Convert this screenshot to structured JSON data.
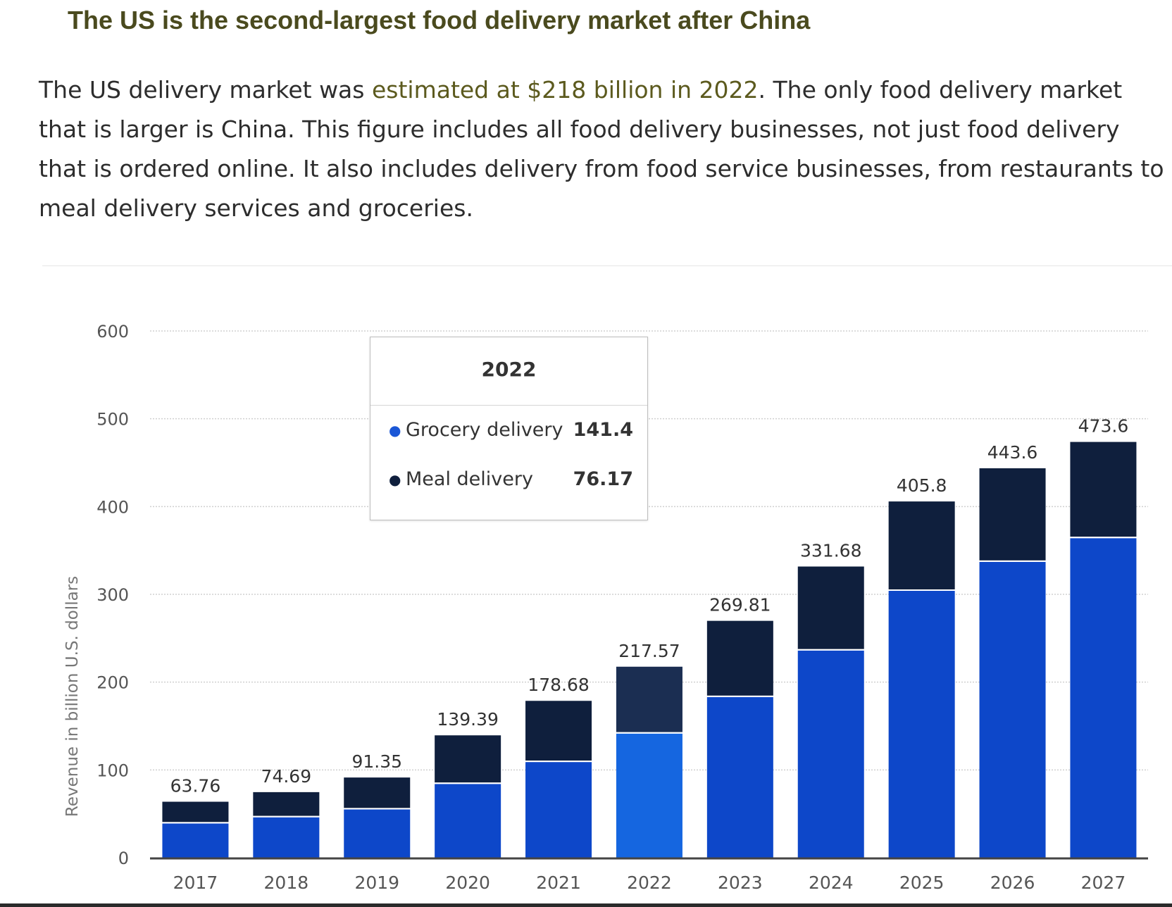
{
  "article": {
    "title": "The US is the second-largest food delivery market after China",
    "intro_before": "The US delivery market was ",
    "intro_link": "estimated at $218 billion in 2022",
    "intro_after": ". The only food delivery market that is larger is China. This figure includes all food delivery businesses, not just food delivery that is ordered online. It also includes delivery from food service businesses, from restaurants to meal delivery services and groceries."
  },
  "colors": {
    "grocery": "#0d47c9",
    "grocery_highlight": "#1566e0",
    "meal": "#0f1f3d",
    "meal_highlight": "#1b2e52",
    "grid": "#d0d0d0",
    "axis_text": "#555555"
  },
  "chart_data": {
    "type": "bar",
    "stacked": true,
    "categories": [
      "2017",
      "2018",
      "2019",
      "2020",
      "2021",
      "2022",
      "2023",
      "2024",
      "2025",
      "2026",
      "2027"
    ],
    "series": [
      {
        "name": "Grocery delivery",
        "values": [
          39,
          46,
          55,
          84,
          109,
          141.4,
          183,
          236,
          304,
          337,
          364
        ]
      },
      {
        "name": "Meal delivery",
        "values": [
          24.76,
          28.69,
          36.35,
          55.39,
          69.68,
          76.17,
          86.81,
          95.68,
          101.8,
          106.6,
          109.6
        ]
      }
    ],
    "totals": [
      "63.76",
      "74.69",
      "91.35",
      "139.39",
      "178.68",
      "217.57",
      "269.81",
      "331.68",
      "405.8",
      "443.6",
      "473.6"
    ],
    "yticks": [
      "0",
      "100",
      "200",
      "300",
      "400",
      "500",
      "600"
    ],
    "ylim": [
      0,
      600
    ],
    "ylabel": "Revenue in billion U.S. dollars",
    "xlabel": "",
    "highlight_index": 5,
    "tooltip": {
      "title": "2022",
      "rows": [
        {
          "label": "Grocery delivery",
          "value": "141.4"
        },
        {
          "label": "Meal delivery",
          "value": "76.17"
        }
      ]
    }
  }
}
